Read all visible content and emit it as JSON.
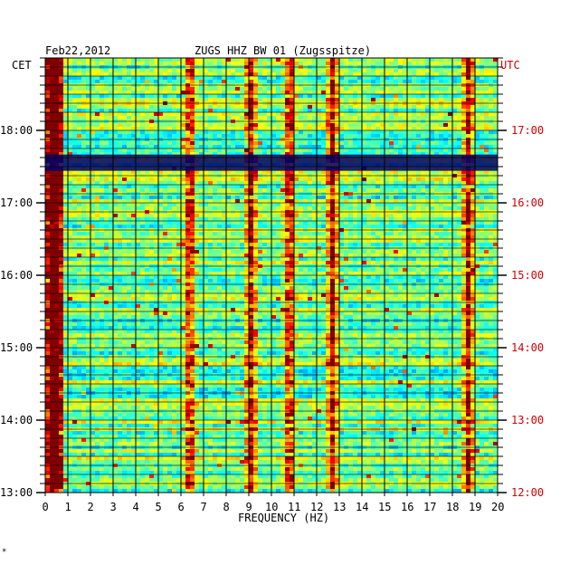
{
  "header": {
    "date": "Feb22,2012",
    "title": "ZUGS HHZ BW 01 (Zugsspitze)",
    "left_timezone": "CET",
    "right_timezone": "UTC"
  },
  "footer_mark": "*",
  "colors": {
    "background_plot": "#00008b",
    "axis_right_text": "#d00000",
    "axis_left_text": "#000000",
    "grid": "#000000"
  },
  "chart_data": {
    "type": "heatmap",
    "title": "ZUGS HHZ BW 01 (Zugsspitze)",
    "xlabel": "FREQUENCY (HZ)",
    "ylabel": "",
    "xlim": [
      0,
      20
    ],
    "x_ticks": [
      "0",
      "1",
      "2",
      "3",
      "4",
      "5",
      "6",
      "7",
      "8",
      "9",
      "10",
      "11",
      "12",
      "13",
      "14",
      "15",
      "16",
      "17",
      "18",
      "19",
      "20"
    ],
    "y_ticks_left_CET": [
      "13:00",
      "14:00",
      "15:00",
      "16:00",
      "17:00",
      "18:00"
    ],
    "y_ticks_right_UTC": [
      "12:00",
      "13:00",
      "14:00",
      "15:00",
      "16:00",
      "17:00"
    ],
    "time_range_CET": [
      "13:00",
      "18:50"
    ],
    "colormap": "jet",
    "notable_bands_hz": [
      0.3,
      6.3,
      9.0,
      10.7,
      12.6,
      18.6
    ]
  }
}
